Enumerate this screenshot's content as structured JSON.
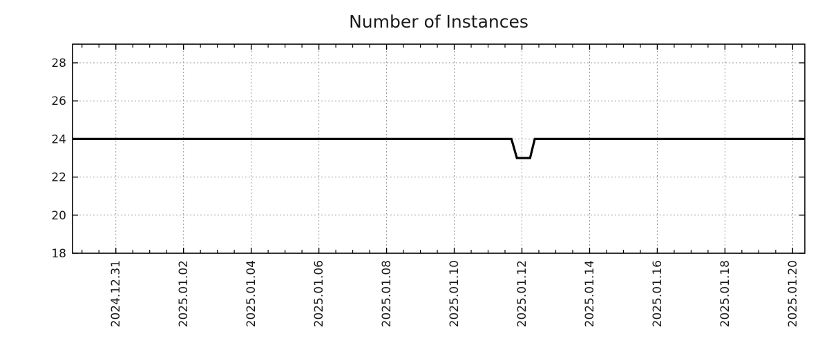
{
  "chart_data": {
    "type": "line",
    "title": "Number of Instances",
    "xlabel": "",
    "ylabel": "",
    "legend": null,
    "x_axis": {
      "kind": "time",
      "tick_labels": [
        "2024.12.31",
        "2025.01.02",
        "2025.01.04",
        "2025.01.06",
        "2025.01.08",
        "2025.01.10",
        "2025.01.12",
        "2025.01.14",
        "2025.01.16",
        "2025.01.18",
        "2025.01.20"
      ],
      "tick_positions_days": [
        0,
        2,
        4,
        6,
        8,
        10,
        12,
        14,
        16,
        18,
        20
      ],
      "xlim_days": [
        -1.28,
        20.36
      ],
      "minor_tick_step_days": 0.5,
      "label_rotation_deg": -90
    },
    "y_axis": {
      "tick_labels": [
        "18",
        "20",
        "22",
        "24",
        "26",
        "28"
      ],
      "tick_values": [
        18,
        20,
        22,
        24,
        26,
        28
      ],
      "ylim": [
        18,
        28.98
      ]
    },
    "grid": {
      "show": true,
      "style": "dotted",
      "color": "#9a9a9a"
    },
    "series": [
      {
        "name": "Number of Instances",
        "color": "#000000",
        "line_width": 3.2,
        "points_day_value": [
          [
            -1.28,
            24
          ],
          [
            11.69,
            24
          ],
          [
            11.85,
            23
          ],
          [
            12.24,
            23
          ],
          [
            12.38,
            24
          ],
          [
            20.36,
            24
          ]
        ],
        "description": "Constant at 24 instances, with a brief dip to 23 from about 2025-01-11 17:00 until about 2025-01-12 09:00."
      }
    ],
    "colors": {
      "axis": "#000000",
      "text": "#1a1a1a",
      "background": "#ffffff"
    }
  }
}
